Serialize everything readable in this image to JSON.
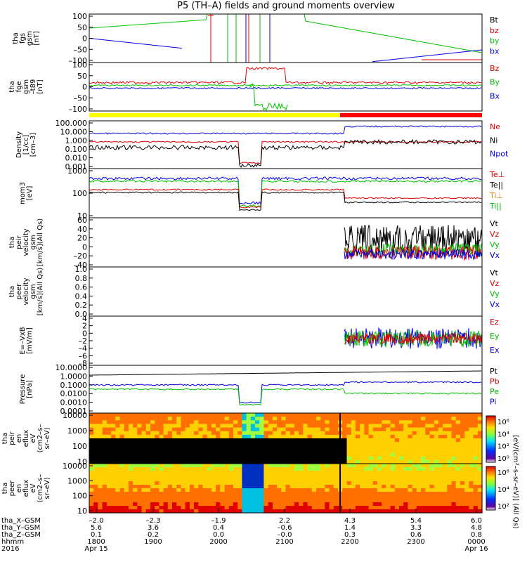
{
  "title": "P5 (TH–A) fields and ground moments overview",
  "panels": [
    {
      "id": "fgs",
      "ylabel": [
        "tha",
        "fgs",
        "gsm",
        "[nT]"
      ],
      "ticks": [
        "100",
        "50",
        "0",
        "–50",
        "–100"
      ],
      "legend": [
        {
          "t": "Bt",
          "c": "#000000"
        },
        {
          "t": "bz",
          "c": "#e00000"
        },
        {
          "t": "by",
          "c": "#00c000"
        },
        {
          "t": "bx",
          "c": "#0000e0"
        }
      ]
    },
    {
      "id": "fge",
      "ylabel": [
        "tha",
        "fge",
        "gsm",
        "–t89",
        "[nT]"
      ],
      "ticks": [
        "100",
        "50",
        "0",
        "–50",
        "–100"
      ],
      "legend": [
        {
          "t": "Bz",
          "c": "#e00000"
        },
        {
          "t": "By",
          "c": "#00c000"
        },
        {
          "t": "Bx",
          "c": "#0000e0"
        }
      ]
    },
    {
      "id": "density",
      "ylabel": [
        "Density",
        "[1/cc]",
        "[cm–3]"
      ],
      "ticks": [
        "100.000",
        "10.000",
        "1.000",
        "0.100",
        "0.010",
        "0.001"
      ],
      "legend": [
        {
          "t": "Ne",
          "c": "#e00000"
        },
        {
          "t": "Ni",
          "c": "#000000"
        },
        {
          "t": "Npot",
          "c": "#0000e0"
        }
      ]
    },
    {
      "id": "temp",
      "ylabel": [
        "mom3",
        "[eV]"
      ],
      "ticks": [
        "1000",
        "100",
        "10"
      ],
      "legend": [
        {
          "t": "Te⊥",
          "c": "#e00000"
        },
        {
          "t": "Te||",
          "c": "#000000"
        },
        {
          "t": "Ti⊥",
          "c": "#e08000"
        },
        {
          "t": "Ti||",
          "c": "#00c000"
        }
      ]
    },
    {
      "id": "peir_vel",
      "ylabel": [
        "tha",
        "peir",
        "velocity",
        "gsm",
        "[km/s](All Qs)"
      ],
      "ticks": [
        "60",
        "40",
        "20",
        "0",
        "–20",
        "–40"
      ],
      "legend": [
        {
          "t": "Vt",
          "c": "#000000"
        },
        {
          "t": "Vz",
          "c": "#e00000"
        },
        {
          "t": "Vy",
          "c": "#00c000"
        },
        {
          "t": "Vx",
          "c": "#0000e0"
        }
      ]
    },
    {
      "id": "peer_vel",
      "ylabel": [
        "tha",
        "peer",
        "velocity",
        "gsm",
        "[km/s](All Qs)"
      ],
      "ticks": [
        "1.0",
        "0.8",
        "0.6",
        "0.4",
        "0.2",
        "0.0"
      ],
      "legend": [
        {
          "t": "Vt",
          "c": "#000000"
        },
        {
          "t": "Vz",
          "c": "#e00000"
        },
        {
          "t": "Vy",
          "c": "#00c000"
        },
        {
          "t": "Vx",
          "c": "#0000e0"
        }
      ]
    },
    {
      "id": "efield",
      "ylabel": [
        "E=–VxB",
        "[mV/m]"
      ],
      "ticks": [
        "4",
        "2",
        "0",
        "–2",
        "–4",
        "–6",
        "–8"
      ],
      "legend": [
        {
          "t": "Ez",
          "c": "#e00000"
        },
        {
          "t": "Ey",
          "c": "#00c000"
        },
        {
          "t": "Ex",
          "c": "#0000e0"
        }
      ]
    },
    {
      "id": "pressure",
      "ylabel": [
        "Pressure",
        "[nPa]"
      ],
      "ticks": [
        "10.0000",
        "1.0000",
        "0.1000",
        "0.0100",
        "0.0010",
        "0.0001"
      ],
      "legend": [
        {
          "t": "Pt",
          "c": "#000000"
        },
        {
          "t": "Pb",
          "c": "#e00000"
        },
        {
          "t": "Pe",
          "c": "#00c000"
        },
        {
          "t": "Pi",
          "c": "#0000e0"
        }
      ]
    },
    {
      "id": "peir_spec",
      "ylabel": [
        "tha",
        "peir",
        "en",
        "eflux",
        "eV",
        "(cm2–s–",
        "sr–eV)"
      ],
      "ticks": [
        "10000",
        "1000",
        "100",
        "10"
      ],
      "legend": []
    },
    {
      "id": "peer_spec",
      "ylabel": [
        "tha",
        "peer",
        "en",
        "eflux",
        "eV",
        "(cm2–s–",
        "sr–eV)"
      ],
      "ticks": [
        "10000",
        "1000",
        "100",
        "10"
      ],
      "legend": []
    }
  ],
  "colorbar": {
    "label": "[eV/(cm²–s–sr–eV)] (All Qs)",
    "ticks_top": [
      "10⁶",
      "10⁴",
      "10²",
      "10⁰"
    ],
    "ticks_bottom": [
      "10⁶",
      "10⁴",
      "10²"
    ]
  },
  "xaxis": {
    "row_labels": [
      "tha_X–GSM",
      "tha_Y–GSM",
      "tha_Z–GSM",
      "hhmm",
      "2016"
    ],
    "columns": [
      {
        "x": "–2.0",
        "y": "5.6",
        "z": "0.1",
        "t": "1800",
        "d": "Apr 15"
      },
      {
        "x": "–2.3",
        "y": "3.6",
        "z": "0.2",
        "t": "1900",
        "d": ""
      },
      {
        "x": "–1.9",
        "y": "0.4",
        "z": "0.0",
        "t": "2000",
        "d": ""
      },
      {
        "x": "2.2",
        "y": "–0.6",
        "z": "–0.0",
        "t": "2100",
        "d": ""
      },
      {
        "x": "4.3",
        "y": "1.4",
        "z": "0.3",
        "t": "2200",
        "d": ""
      },
      {
        "x": "5.4",
        "y": "3.3",
        "z": "0.6",
        "t": "2300",
        "d": ""
      },
      {
        "x": "6.0",
        "y": "4.8",
        "z": "0.8",
        "t": "0000",
        "d": "Apr 16"
      }
    ]
  },
  "mode_bar": {
    "colors": [
      "#ffff00",
      "#ff0000"
    ]
  },
  "chart_data": {
    "type": "line",
    "title": "P5 (TH–A) fields and ground moments overview",
    "x": [
      "1800",
      "1900",
      "2000",
      "2100",
      "2200",
      "2300",
      "0000"
    ],
    "series": [
      {
        "name": "bz",
        "values": [
          -70,
          -80,
          -100,
          50,
          -100,
          -60,
          -40
        ]
      },
      {
        "name": "by",
        "values": [
          40,
          100,
          100,
          100,
          -80,
          -60,
          -50
        ]
      },
      {
        "name": "bx",
        "values": [
          30,
          -80,
          -100,
          100,
          -100,
          -70,
          -40
        ]
      },
      {
        "name": "Bz",
        "values": [
          10,
          8,
          0,
          80,
          10,
          5,
          0
        ]
      },
      {
        "name": "By",
        "values": [
          0,
          0,
          -10,
          -80,
          0,
          0,
          0
        ]
      },
      {
        "name": "Bx",
        "values": [
          -10,
          -10,
          -20,
          -100,
          -20,
          -15,
          -10
        ]
      },
      {
        "name": "Ne",
        "values": [
          2.0,
          2.0,
          2.0,
          0.01,
          1.0,
          0.5,
          0.3
        ]
      },
      {
        "name": "Ni",
        "values": [
          0.2,
          0.3,
          0.3,
          0.01,
          0.3,
          1.0,
          1.0
        ]
      },
      {
        "name": "Npot",
        "values": [
          10,
          12,
          20,
          0.3,
          20,
          10,
          8
        ]
      },
      {
        "name": "Pt",
        "values": [
          0.1,
          1,
          5,
          8,
          12,
          8,
          5
        ]
      },
      {
        "name": "Pe",
        "values": [
          0.01,
          0.02,
          0.003,
          0.0001,
          0.01,
          0.005,
          0.003
        ]
      },
      {
        "name": "Pi",
        "values": [
          0.1,
          0.08,
          0.05,
          0.0005,
          0.2,
          0.05,
          0.03
        ]
      }
    ],
    "ylim": [
      -100,
      100
    ],
    "grid": false,
    "legend": "right"
  }
}
